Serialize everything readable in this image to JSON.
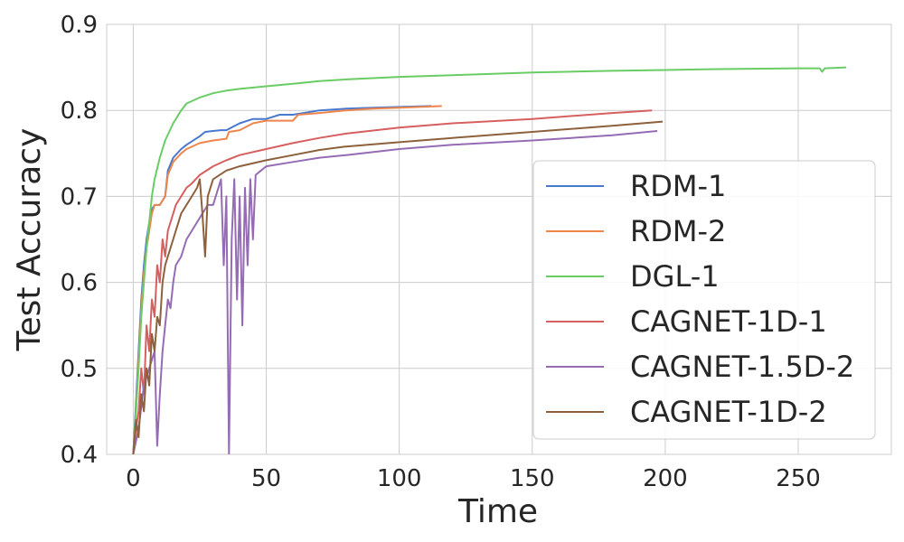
{
  "chart_data": {
    "type": "line",
    "title": "",
    "xlabel": "Time",
    "ylabel": "Test Accuracy",
    "xlim": [
      -10,
      285
    ],
    "ylim": [
      0.4,
      0.9
    ],
    "x_ticks": [
      0,
      50,
      100,
      150,
      200,
      250
    ],
    "x_tick_labels": [
      "0",
      "50",
      "100",
      "150",
      "200",
      "250"
    ],
    "y_ticks": [
      0.4,
      0.5,
      0.6,
      0.7,
      0.8,
      0.9
    ],
    "y_tick_labels": [
      "0.4",
      "0.5",
      "0.6",
      "0.7",
      "0.8",
      "0.9"
    ],
    "grid": true,
    "legend_position": "center-right",
    "series": [
      {
        "name": "RDM-1",
        "color": "#4878d0",
        "x": [
          0,
          1,
          2,
          3,
          4,
          5,
          6,
          7,
          8,
          10,
          12,
          13,
          15,
          18,
          20,
          25,
          27,
          30,
          33,
          35,
          40,
          45,
          50,
          55,
          60,
          70,
          80,
          90,
          100,
          112
        ],
        "y": [
          0.4,
          0.46,
          0.52,
          0.58,
          0.62,
          0.65,
          0.67,
          0.685,
          0.69,
          0.69,
          0.7,
          0.73,
          0.745,
          0.755,
          0.76,
          0.77,
          0.775,
          0.776,
          0.777,
          0.777,
          0.785,
          0.79,
          0.79,
          0.795,
          0.795,
          0.8,
          0.802,
          0.803,
          0.804,
          0.805
        ]
      },
      {
        "name": "RDM-2",
        "color": "#ee854a",
        "x": [
          0,
          1,
          2,
          3,
          4,
          5,
          6,
          7,
          8,
          10,
          12,
          13,
          15,
          18,
          20,
          25,
          30,
          35,
          36,
          40,
          45,
          50,
          55,
          60,
          62,
          70,
          80,
          90,
          100,
          116
        ],
        "y": [
          0.4,
          0.45,
          0.51,
          0.57,
          0.61,
          0.64,
          0.66,
          0.68,
          0.69,
          0.69,
          0.7,
          0.725,
          0.74,
          0.75,
          0.755,
          0.762,
          0.765,
          0.767,
          0.775,
          0.777,
          0.785,
          0.788,
          0.788,
          0.788,
          0.795,
          0.797,
          0.8,
          0.802,
          0.803,
          0.805
        ]
      },
      {
        "name": "DGL-1",
        "color": "#6acc64",
        "x": [
          0,
          1,
          2,
          3,
          4,
          5,
          6,
          7,
          8,
          10,
          12,
          15,
          18,
          20,
          25,
          30,
          35,
          40,
          50,
          60,
          70,
          80,
          100,
          120,
          150,
          180,
          200,
          220,
          250,
          258,
          259,
          260,
          268
        ],
        "y": [
          0.4,
          0.45,
          0.5,
          0.56,
          0.6,
          0.64,
          0.67,
          0.7,
          0.72,
          0.745,
          0.765,
          0.785,
          0.8,
          0.808,
          0.815,
          0.82,
          0.823,
          0.825,
          0.828,
          0.831,
          0.834,
          0.836,
          0.839,
          0.841,
          0.844,
          0.846,
          0.847,
          0.848,
          0.849,
          0.849,
          0.845,
          0.849,
          0.85
        ]
      },
      {
        "name": "CAGNET-1D-1",
        "color": "#d65f5f",
        "x": [
          0,
          1,
          2,
          3,
          4,
          5,
          6,
          7,
          8,
          9,
          10,
          11,
          12,
          13,
          14,
          15,
          16,
          18,
          20,
          22,
          25,
          30,
          35,
          40,
          50,
          60,
          70,
          80,
          100,
          120,
          150,
          180,
          195
        ],
        "y": [
          0.4,
          0.43,
          0.45,
          0.5,
          0.47,
          0.55,
          0.52,
          0.58,
          0.56,
          0.62,
          0.6,
          0.65,
          0.63,
          0.66,
          0.67,
          0.68,
          0.69,
          0.7,
          0.71,
          0.715,
          0.725,
          0.735,
          0.742,
          0.748,
          0.755,
          0.762,
          0.768,
          0.773,
          0.78,
          0.785,
          0.79,
          0.797,
          0.8
        ]
      },
      {
        "name": "CAGNET-1.5D-2",
        "color": "#956cb4",
        "x": [
          0,
          2,
          4,
          6,
          8,
          9,
          10,
          11,
          12,
          13,
          14,
          15,
          16,
          18,
          20,
          22,
          24,
          26,
          28,
          30,
          32,
          33,
          34,
          35,
          36,
          37,
          38,
          39,
          40,
          41,
          42,
          43,
          44,
          45,
          46,
          48,
          50,
          60,
          70,
          80,
          100,
          120,
          150,
          180,
          197
        ],
        "y": [
          0.4,
          0.43,
          0.48,
          0.5,
          0.52,
          0.41,
          0.47,
          0.52,
          0.55,
          0.58,
          0.57,
          0.6,
          0.62,
          0.63,
          0.65,
          0.66,
          0.67,
          0.68,
          0.69,
          0.69,
          0.71,
          0.72,
          0.62,
          0.7,
          0.4,
          0.65,
          0.72,
          0.58,
          0.7,
          0.55,
          0.71,
          0.62,
          0.72,
          0.65,
          0.725,
          0.73,
          0.735,
          0.74,
          0.745,
          0.748,
          0.755,
          0.76,
          0.765,
          0.771,
          0.776
        ]
      },
      {
        "name": "CAGNET-1D-2",
        "color": "#8c613c",
        "x": [
          0,
          1,
          2,
          3,
          4,
          5,
          6,
          7,
          8,
          9,
          10,
          11,
          12,
          14,
          16,
          18,
          20,
          22,
          24,
          25,
          26,
          27,
          28,
          30,
          35,
          40,
          50,
          60,
          70,
          80,
          100,
          120,
          150,
          180,
          199
        ],
        "y": [
          0.4,
          0.44,
          0.42,
          0.47,
          0.45,
          0.5,
          0.48,
          0.54,
          0.52,
          0.56,
          0.55,
          0.6,
          0.62,
          0.64,
          0.66,
          0.68,
          0.69,
          0.7,
          0.71,
          0.72,
          0.68,
          0.63,
          0.7,
          0.72,
          0.73,
          0.735,
          0.742,
          0.748,
          0.754,
          0.758,
          0.763,
          0.768,
          0.775,
          0.782,
          0.787
        ]
      }
    ]
  }
}
